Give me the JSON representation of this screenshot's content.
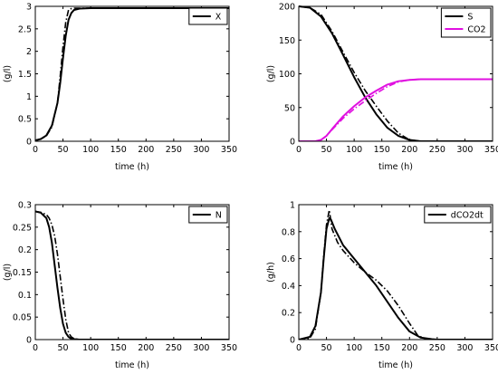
{
  "chart_data": [
    {
      "type": "line",
      "xlabel": "time (h)",
      "ylabel": "(g/l)",
      "xlim": [
        0,
        350
      ],
      "ylim": [
        0,
        3
      ],
      "xticks": [
        "0",
        "50",
        "100",
        "150",
        "200",
        "250",
        "300",
        "350"
      ],
      "yticks": [
        "0",
        "0.5",
        "1",
        "1.5",
        "2",
        "2.5",
        "3"
      ],
      "legend_position": "top-right",
      "series": [
        {
          "name": "X",
          "color": "#000000",
          "style": "solid",
          "in_legend": true,
          "x": [
            0,
            10,
            20,
            30,
            40,
            45,
            50,
            55,
            60,
            65,
            70,
            80,
            100,
            150,
            350
          ],
          "y": [
            0.02,
            0.05,
            0.13,
            0.35,
            0.85,
            1.3,
            1.85,
            2.35,
            2.7,
            2.85,
            2.92,
            2.95,
            2.96,
            2.96,
            2.96
          ]
        },
        {
          "name": "",
          "color": "#000000",
          "style": "dashdot",
          "in_legend": false,
          "x": [
            0,
            10,
            20,
            30,
            40,
            45,
            50,
            55,
            60,
            65,
            70,
            80,
            100,
            150,
            350
          ],
          "y": [
            0.02,
            0.05,
            0.12,
            0.32,
            0.85,
            1.45,
            2.1,
            2.65,
            2.92,
            2.95,
            2.96,
            2.96,
            2.96,
            2.96,
            2.96
          ]
        }
      ]
    },
    {
      "type": "line",
      "xlabel": "time (h)",
      "ylabel": "(g/l)",
      "xlim": [
        0,
        350
      ],
      "ylim": [
        0,
        200
      ],
      "xticks": [
        "0",
        "50",
        "100",
        "150",
        "200",
        "250",
        "300",
        "350"
      ],
      "yticks": [
        "0",
        "50",
        "100",
        "150",
        "200"
      ],
      "legend_position": "top-right",
      "series": [
        {
          "name": "S",
          "color": "#000000",
          "style": "solid",
          "in_legend": true,
          "x": [
            0,
            20,
            40,
            60,
            80,
            100,
            120,
            140,
            160,
            180,
            200,
            220,
            350
          ],
          "y": [
            200,
            198,
            185,
            160,
            128,
            95,
            65,
            40,
            20,
            8,
            2,
            0,
            0
          ]
        },
        {
          "name": "",
          "color": "#000000",
          "style": "dashdot",
          "in_legend": false,
          "x": [
            0,
            20,
            40,
            60,
            80,
            100,
            120,
            140,
            160,
            180,
            200,
            220,
            350
          ],
          "y": [
            200,
            198,
            188,
            163,
            132,
            102,
            75,
            52,
            30,
            12,
            2,
            0,
            0
          ]
        },
        {
          "name": "CO2",
          "color": "#e010e0",
          "style": "solid",
          "in_legend": true,
          "x": [
            0,
            30,
            40,
            50,
            60,
            80,
            100,
            120,
            140,
            160,
            180,
            200,
            220,
            250,
            350
          ],
          "y": [
            0,
            0,
            2,
            8,
            18,
            37,
            52,
            65,
            75,
            84,
            89,
            91,
            92,
            92,
            92
          ]
        },
        {
          "name": "",
          "color": "#e010e0",
          "style": "dashdot",
          "in_legend": false,
          "x": [
            0,
            30,
            40,
            50,
            60,
            80,
            100,
            120,
            140,
            160,
            180,
            200,
            220,
            250,
            350
          ],
          "y": [
            0,
            0,
            2,
            8,
            17,
            34,
            48,
            60,
            71,
            81,
            88,
            91,
            92,
            92,
            92
          ]
        }
      ]
    },
    {
      "type": "line",
      "xlabel": "time (h)",
      "ylabel": "(g/l)",
      "xlim": [
        0,
        350
      ],
      "ylim": [
        0,
        0.3
      ],
      "xticks": [
        "0",
        "50",
        "100",
        "150",
        "200",
        "250",
        "300",
        "350"
      ],
      "yticks": [
        "0",
        "0.05",
        "0.1",
        "0.15",
        "0.2",
        "0.25",
        "0.3"
      ],
      "legend_position": "top-right",
      "series": [
        {
          "name": "N",
          "color": "#000000",
          "style": "solid",
          "in_legend": true,
          "x": [
            0,
            10,
            20,
            25,
            30,
            35,
            40,
            45,
            50,
            55,
            60,
            65,
            70,
            80,
            100,
            350
          ],
          "y": [
            0.285,
            0.282,
            0.27,
            0.25,
            0.215,
            0.165,
            0.115,
            0.07,
            0.035,
            0.015,
            0.006,
            0.002,
            0.001,
            0,
            0,
            0
          ]
        },
        {
          "name": "",
          "color": "#000000",
          "style": "dashdot",
          "in_legend": false,
          "x": [
            0,
            10,
            20,
            25,
            30,
            35,
            40,
            45,
            50,
            55,
            60,
            65,
            70,
            80,
            100,
            350
          ],
          "y": [
            0.285,
            0.283,
            0.278,
            0.27,
            0.255,
            0.23,
            0.19,
            0.14,
            0.09,
            0.045,
            0.015,
            0.006,
            0.002,
            0,
            0,
            0
          ]
        }
      ]
    },
    {
      "type": "line",
      "xlabel": "time (h)",
      "ylabel": "(g/h)",
      "xlim": [
        0,
        350
      ],
      "ylim": [
        0,
        1
      ],
      "xticks": [
        "0",
        "50",
        "100",
        "150",
        "200",
        "250",
        "300",
        "350"
      ],
      "yticks": [
        "0",
        "0.2",
        "0.4",
        "0.6",
        "0.8",
        "1"
      ],
      "legend_position": "top-right",
      "series": [
        {
          "name": "dCO2dt",
          "color": "#000000",
          "style": "solid",
          "in_legend": true,
          "x": [
            0,
            20,
            30,
            40,
            45,
            50,
            55,
            58,
            65,
            80,
            100,
            120,
            140,
            160,
            180,
            200,
            220,
            240,
            250,
            350
          ],
          "y": [
            0,
            0.02,
            0.1,
            0.35,
            0.6,
            0.82,
            0.9,
            0.89,
            0.82,
            0.7,
            0.6,
            0.5,
            0.4,
            0.28,
            0.16,
            0.06,
            0.015,
            0.003,
            0,
            0
          ]
        },
        {
          "name": "",
          "color": "#000000",
          "style": "dashdot",
          "in_legend": false,
          "x": [
            0,
            20,
            30,
            40,
            45,
            50,
            55,
            60,
            70,
            80,
            100,
            120,
            140,
            160,
            180,
            200,
            215,
            230,
            240,
            350
          ],
          "y": [
            0,
            0.01,
            0.08,
            0.35,
            0.62,
            0.85,
            0.96,
            0.82,
            0.72,
            0.66,
            0.57,
            0.5,
            0.44,
            0.36,
            0.25,
            0.12,
            0.03,
            0.005,
            0,
            0
          ]
        }
      ]
    }
  ]
}
